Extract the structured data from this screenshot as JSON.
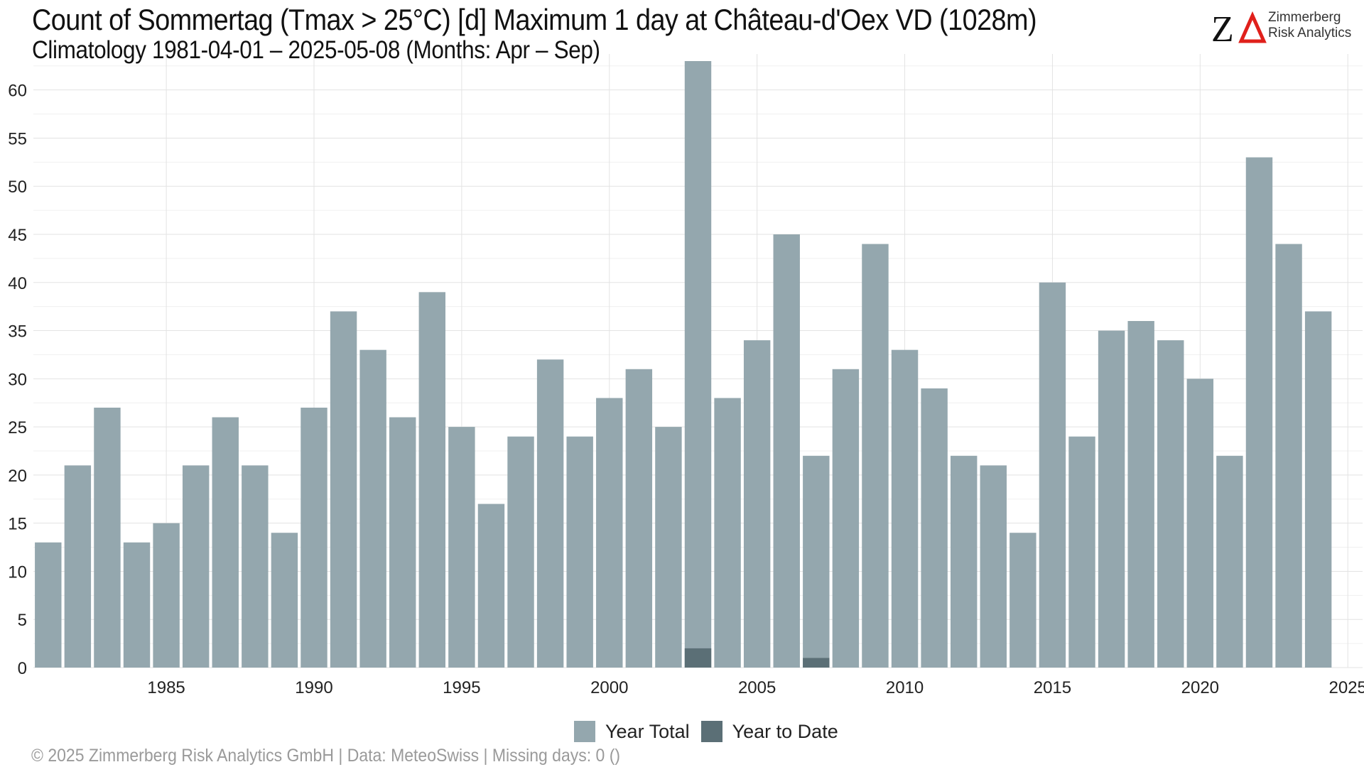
{
  "header": {
    "title": "Count of Sommertag (Tmax > 25°C) [d] Maximum 1 day at Château-d'Oex  VD (1028m)",
    "subtitle": "Climatology 1981-04-01 – 2025-05-08 (Months: Apr – Sep)"
  },
  "logo": {
    "mark": "ZΔ",
    "line1": "Zimmerberg",
    "line2": "Risk Analytics",
    "accent_color": "#e0201b"
  },
  "caption": "©  2025 Zimmerberg Risk Analytics GmbH | Data: MeteoSwiss | Missing days: 0 ()",
  "colors": {
    "year_total": "#94a7ae",
    "year_to_date": "#5b6f76",
    "grid": "#e3e3e3"
  },
  "chart_data": {
    "type": "bar",
    "title": "Count of Sommertag (Tmax > 25°C) [d] Maximum 1 day at Château-d'Oex  VD (1028m)",
    "x": [
      1981,
      1982,
      1983,
      1984,
      1985,
      1986,
      1987,
      1988,
      1989,
      1990,
      1991,
      1992,
      1993,
      1994,
      1995,
      1996,
      1997,
      1998,
      1999,
      2000,
      2001,
      2002,
      2003,
      2004,
      2005,
      2006,
      2007,
      2008,
      2009,
      2010,
      2011,
      2012,
      2013,
      2014,
      2015,
      2016,
      2017,
      2018,
      2019,
      2020,
      2021,
      2022,
      2023,
      2024
    ],
    "series": [
      {
        "name": "Year Total",
        "values": [
          13,
          21,
          27,
          13,
          15,
          21,
          26,
          21,
          14,
          27,
          37,
          33,
          26,
          39,
          25,
          17,
          24,
          32,
          24,
          28,
          31,
          25,
          63,
          28,
          34,
          45,
          22,
          31,
          44,
          33,
          29,
          22,
          21,
          14,
          40,
          24,
          35,
          36,
          34,
          30,
          22,
          53,
          44,
          37
        ]
      },
      {
        "name": "Year to Date",
        "values": [
          0,
          0,
          0,
          0,
          0,
          0,
          0,
          0,
          0,
          0,
          0,
          0,
          0,
          0,
          0,
          0,
          0,
          0,
          0,
          0,
          0,
          0,
          2,
          0,
          0,
          0,
          1,
          0,
          0,
          0,
          0,
          0,
          0,
          0,
          0,
          0,
          0,
          0,
          0,
          0,
          0,
          0,
          0,
          0
        ]
      }
    ],
    "x_ticks": [
      1985,
      1990,
      1995,
      2000,
      2005,
      2010,
      2015,
      2020,
      2025
    ],
    "y_ticks": [
      0,
      5,
      10,
      15,
      20,
      25,
      30,
      35,
      40,
      45,
      50,
      55,
      60
    ],
    "xlim": [
      1980.5,
      2025.5
    ],
    "ylim": [
      0,
      63
    ],
    "grid": true,
    "legend": "bottom"
  }
}
